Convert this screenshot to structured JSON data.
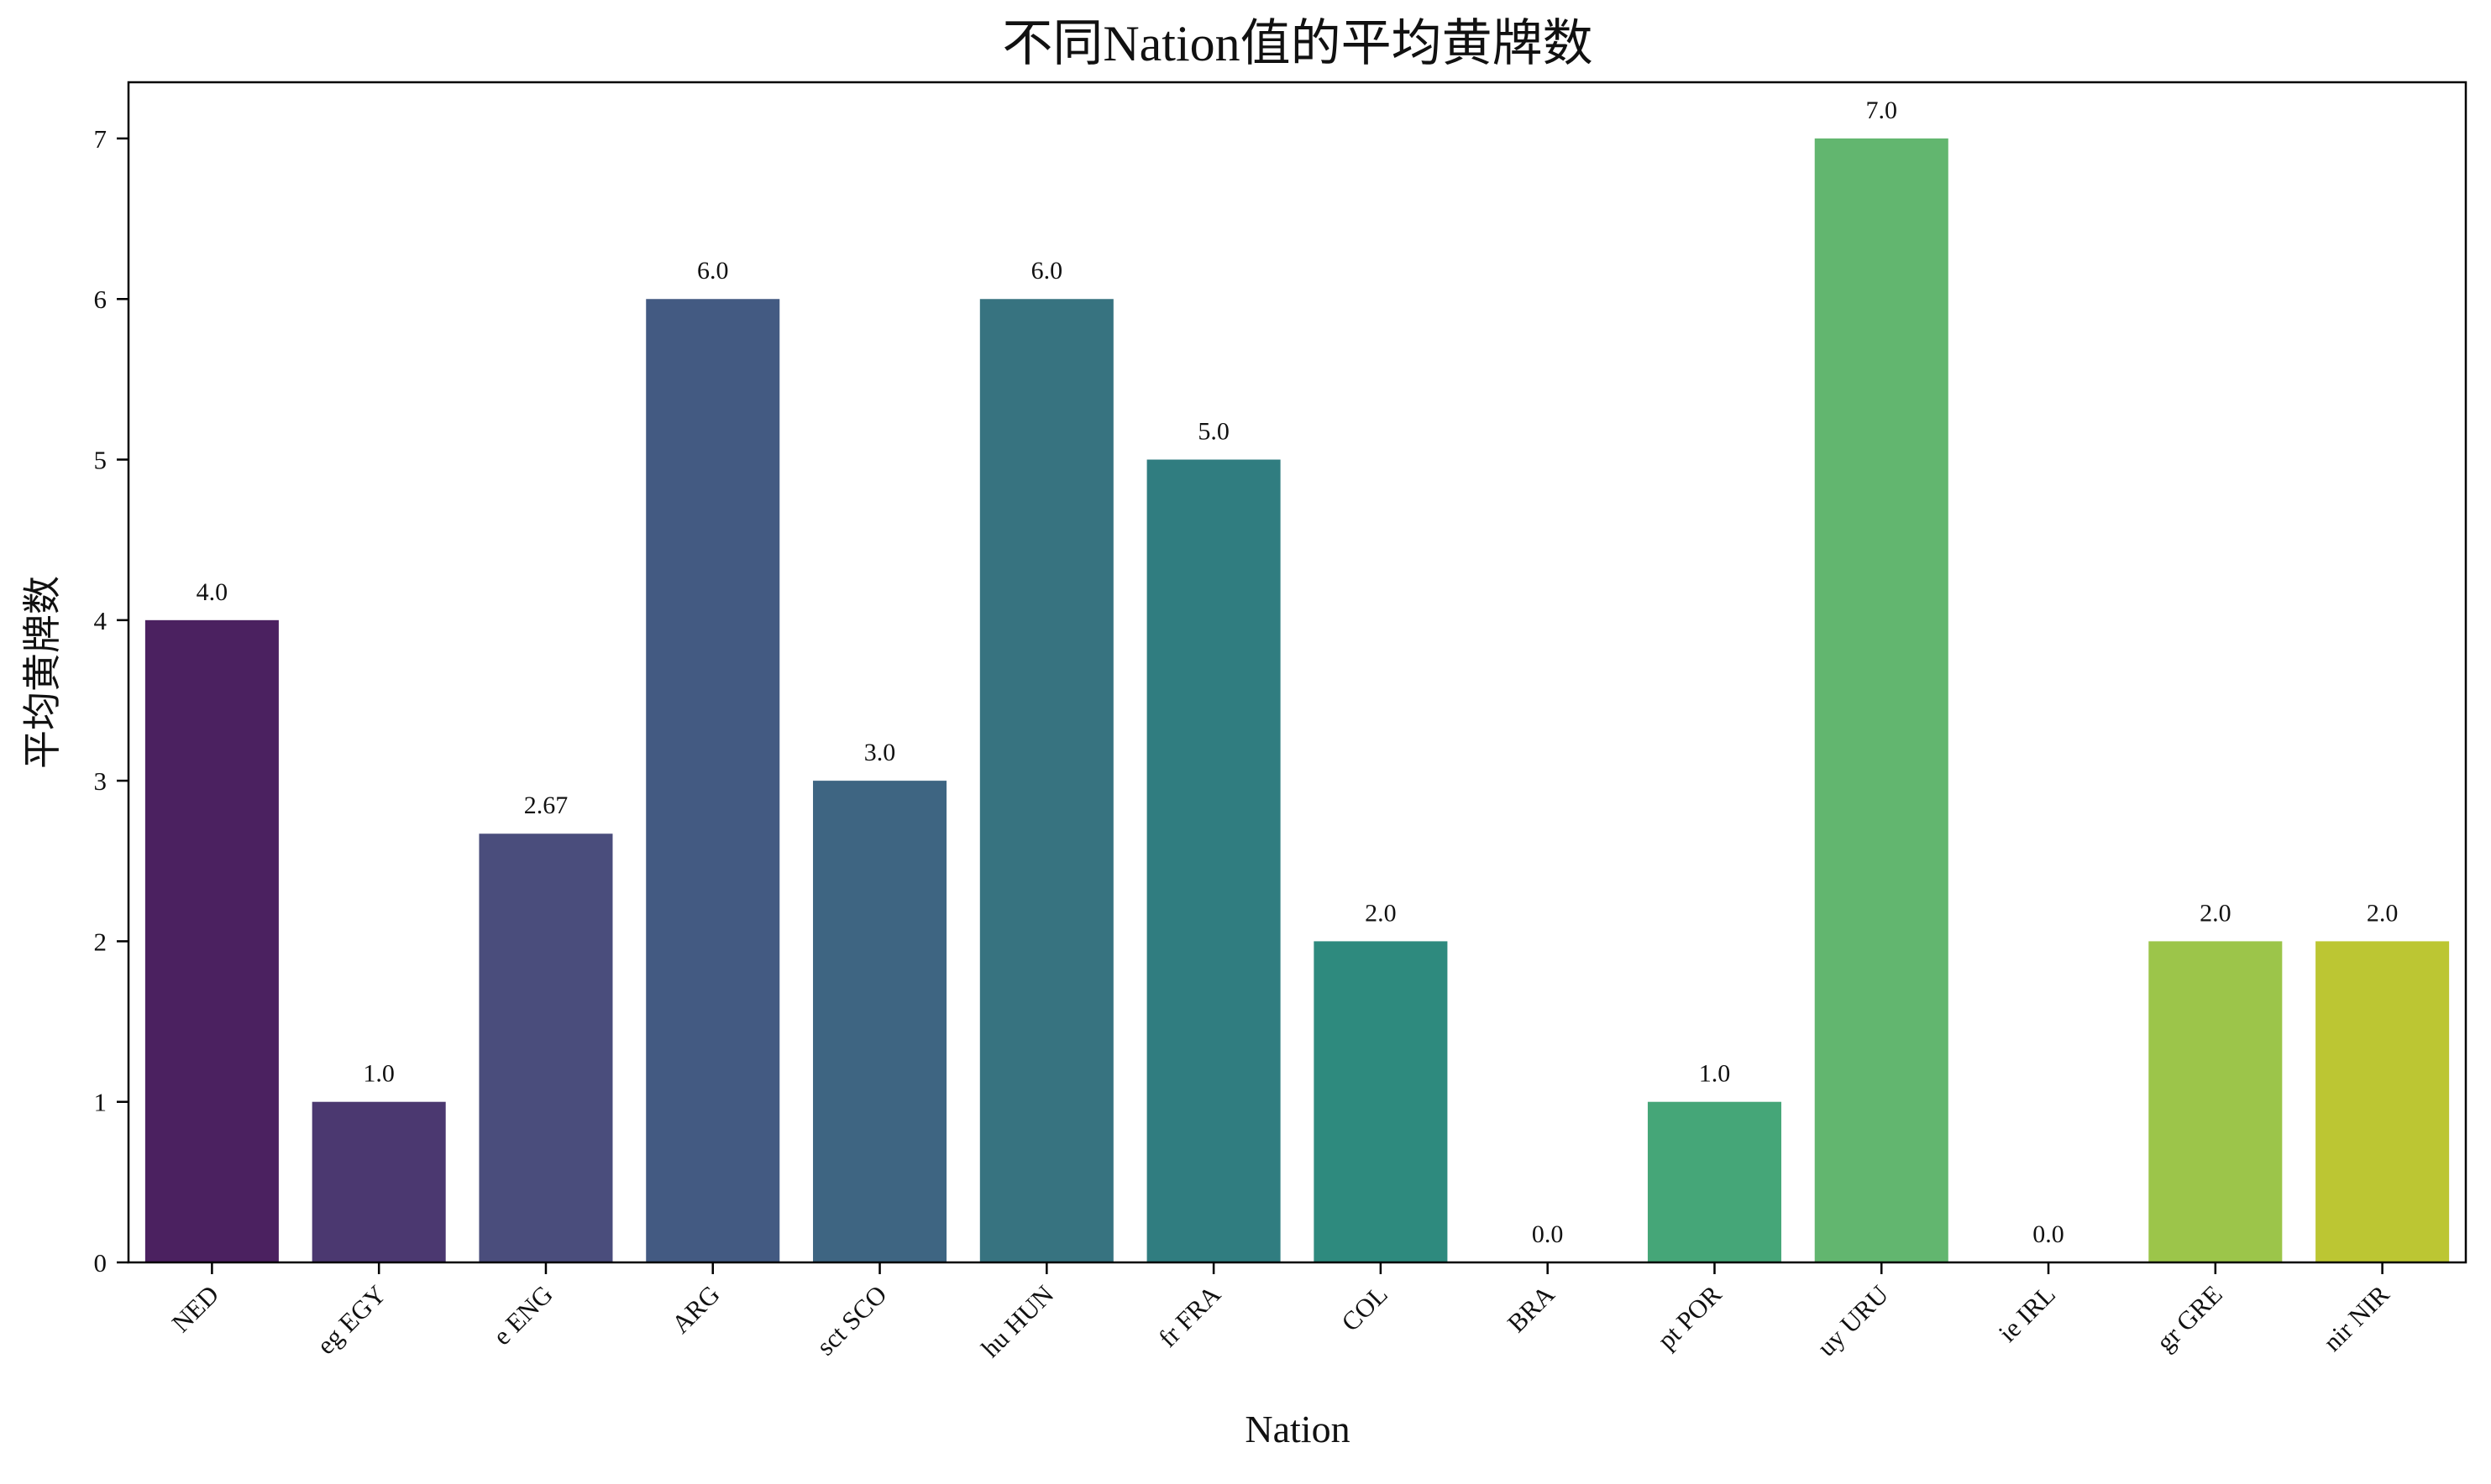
{
  "chart_data": {
    "type": "bar",
    "title": "不同Nation值的平均黄牌数",
    "xlabel": "Nation",
    "ylabel": "平均黄牌数",
    "categories": [
      "NED",
      "eg EGY",
      "e ENG",
      "ARG",
      "sct SCO",
      "hu HUN",
      "fr FRA",
      "COL",
      "BRA",
      "pt POR",
      "uy URU",
      "ie IRL",
      "gr GRE",
      "nir NIR"
    ],
    "values": [
      4.0,
      1.0,
      2.67,
      6.0,
      3.0,
      6.0,
      5.0,
      2.0,
      0.0,
      1.0,
      7.0,
      0.0,
      2.0,
      2.0
    ],
    "data_labels": [
      "4.0",
      "1.0",
      "2.67",
      "6.0",
      "3.0",
      "6.0",
      "5.0",
      "2.0",
      "0.0",
      "1.0",
      "7.0",
      "0.0",
      "2.0",
      "2.0"
    ],
    "colors": [
      "#4b2160",
      "#4b3870",
      "#4a4d7c",
      "#435a82",
      "#3e6582",
      "#377380",
      "#307d80",
      "#2e8a7e",
      "#3a9a7b",
      "#45a678",
      "#62b66f",
      "#82bf5b",
      "#9cc54a",
      "#bcc633"
    ],
    "yticks": [
      0,
      1,
      2,
      3,
      4,
      5,
      6,
      7
    ],
    "ylim": [
      0,
      7.35
    ],
    "grid": false,
    "legend": "none"
  }
}
